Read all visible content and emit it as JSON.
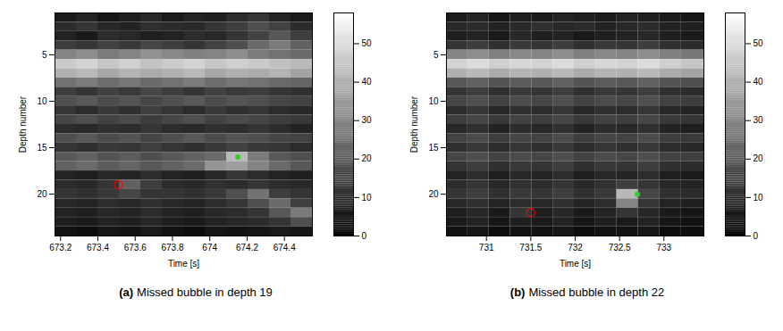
{
  "chart_data": [
    {
      "type": "heatmap",
      "title": "(a) Missed bubble in depth 19",
      "x_label": "Time [s]",
      "y_label": "Depth number",
      "xlim": [
        673.17,
        674.55
      ],
      "xticks": [
        673.2,
        673.4,
        673.6,
        673.8,
        674,
        674.2,
        674.4
      ],
      "ylim": [
        24.5,
        0.5
      ],
      "yticks": [
        5,
        10,
        15,
        20
      ],
      "time_bins": [
        673.17,
        673.285,
        673.4,
        673.515,
        673.63,
        673.745,
        673.86,
        673.975,
        674.09,
        674.205,
        674.32,
        674.435,
        674.55
      ],
      "depths": [
        1,
        2,
        3,
        4,
        5,
        6,
        7,
        8,
        9,
        10,
        11,
        12,
        13,
        14,
        15,
        16,
        17,
        18,
        19,
        20,
        21,
        22,
        23,
        24
      ],
      "cells": [
        [
          6,
          8,
          5,
          7,
          9,
          6,
          8,
          7,
          10,
          12,
          8,
          6
        ],
        [
          10,
          12,
          9,
          8,
          11,
          10,
          9,
          12,
          14,
          18,
          15,
          10
        ],
        [
          8,
          6,
          10,
          9,
          7,
          8,
          10,
          9,
          12,
          15,
          20,
          14
        ],
        [
          14,
          12,
          15,
          13,
          16,
          14,
          12,
          15,
          18,
          24,
          28,
          22
        ],
        [
          30,
          32,
          28,
          30,
          33,
          31,
          29,
          30,
          32,
          28,
          26,
          24
        ],
        [
          46,
          48,
          45,
          47,
          44,
          46,
          48,
          45,
          47,
          46,
          44,
          42
        ],
        [
          40,
          42,
          38,
          41,
          39,
          40,
          42,
          38,
          40,
          39,
          41,
          37
        ],
        [
          26,
          28,
          25,
          27,
          24,
          26,
          28,
          25,
          27,
          26,
          24,
          23
        ],
        [
          14,
          12,
          15,
          13,
          16,
          14,
          12,
          15,
          13,
          14,
          12,
          11
        ],
        [
          18,
          20,
          17,
          19,
          16,
          18,
          20,
          17,
          19,
          18,
          16,
          15
        ],
        [
          12,
          10,
          13,
          11,
          14,
          12,
          10,
          13,
          11,
          12,
          10,
          9
        ],
        [
          16,
          18,
          15,
          17,
          14,
          16,
          18,
          15,
          17,
          16,
          14,
          13
        ],
        [
          10,
          9,
          11,
          10,
          12,
          10,
          9,
          11,
          10,
          12,
          10,
          8
        ],
        [
          18,
          20,
          17,
          19,
          16,
          18,
          20,
          17,
          19,
          18,
          16,
          15
        ],
        [
          12,
          11,
          13,
          12,
          14,
          12,
          11,
          13,
          15,
          13,
          12,
          10
        ],
        [
          20,
          22,
          19,
          21,
          18,
          20,
          22,
          24,
          42,
          28,
          20,
          18
        ],
        [
          22,
          24,
          21,
          23,
          20,
          22,
          24,
          34,
          36,
          30,
          24,
          20
        ],
        [
          8,
          7,
          9,
          8,
          10,
          8,
          7,
          9,
          12,
          10,
          8,
          7
        ],
        [
          10,
          9,
          12,
          22,
          14,
          10,
          9,
          11,
          10,
          12,
          10,
          9
        ],
        [
          12,
          11,
          13,
          16,
          12,
          12,
          11,
          13,
          18,
          26,
          14,
          12
        ],
        [
          9,
          8,
          10,
          9,
          11,
          9,
          8,
          10,
          12,
          18,
          24,
          14
        ],
        [
          8,
          7,
          9,
          8,
          10,
          8,
          7,
          9,
          10,
          12,
          20,
          28
        ],
        [
          7,
          6,
          8,
          7,
          9,
          7,
          6,
          8,
          9,
          10,
          12,
          18
        ],
        [
          4,
          3,
          5,
          4,
          6,
          4,
          3,
          5,
          4,
          5,
          6,
          5
        ]
      ],
      "colorbar": {
        "range": [
          0,
          58
        ],
        "ticks": [
          0,
          10,
          20,
          30,
          40,
          50
        ]
      },
      "points": [
        {
          "x": 673.51,
          "y": 19,
          "color": "red",
          "marker": "circle"
        },
        {
          "x": 674.15,
          "y": 16,
          "color": "#33cc33",
          "marker": "point"
        }
      ]
    },
    {
      "type": "heatmap",
      "title": "(b) Missed bubble in depth 22",
      "x_label": "Time [s]",
      "y_label": "Depth number",
      "xlim": [
        730.55,
        733.45
      ],
      "xticks": [
        731,
        731.5,
        732,
        732.5,
        733
      ],
      "ylim": [
        24.5,
        0.5
      ],
      "yticks": [
        5,
        10,
        15,
        20
      ],
      "time_bins": [
        730.55,
        730.79,
        731.03,
        731.27,
        731.51,
        731.75,
        731.99,
        732.23,
        732.47,
        732.71,
        732.95,
        733.19,
        733.45
      ],
      "depths": [
        1,
        2,
        3,
        4,
        5,
        6,
        7,
        8,
        9,
        10,
        11,
        12,
        13,
        14,
        15,
        16,
        17,
        18,
        19,
        20,
        21,
        22,
        23,
        24
      ],
      "cells": [
        [
          6,
          8,
          5,
          7,
          6,
          8,
          7,
          6,
          8,
          7,
          6,
          5
        ],
        [
          9,
          10,
          8,
          9,
          11,
          9,
          10,
          8,
          9,
          10,
          8,
          7
        ],
        [
          7,
          8,
          6,
          9,
          7,
          8,
          6,
          7,
          8,
          9,
          7,
          6
        ],
        [
          12,
          14,
          11,
          13,
          12,
          14,
          11,
          13,
          12,
          14,
          11,
          10
        ],
        [
          30,
          32,
          29,
          31,
          30,
          32,
          29,
          31,
          30,
          32,
          29,
          27
        ],
        [
          48,
          50,
          47,
          49,
          48,
          50,
          47,
          49,
          48,
          50,
          47,
          45
        ],
        [
          40,
          42,
          39,
          41,
          40,
          42,
          39,
          41,
          40,
          42,
          39,
          37
        ],
        [
          20,
          22,
          19,
          21,
          20,
          22,
          19,
          21,
          20,
          22,
          19,
          18
        ],
        [
          12,
          14,
          11,
          13,
          12,
          14,
          11,
          13,
          12,
          14,
          11,
          10
        ],
        [
          16,
          18,
          15,
          17,
          16,
          18,
          15,
          17,
          16,
          18,
          15,
          14
        ],
        [
          10,
          12,
          9,
          11,
          10,
          12,
          9,
          11,
          10,
          12,
          9,
          8
        ],
        [
          14,
          16,
          13,
          15,
          14,
          16,
          13,
          15,
          14,
          16,
          13,
          12
        ],
        [
          9,
          11,
          8,
          10,
          9,
          11,
          8,
          10,
          9,
          11,
          8,
          7
        ],
        [
          15,
          17,
          14,
          16,
          15,
          17,
          14,
          16,
          15,
          17,
          14,
          13
        ],
        [
          11,
          13,
          10,
          12,
          11,
          13,
          10,
          12,
          11,
          13,
          10,
          9
        ],
        [
          16,
          18,
          15,
          17,
          16,
          18,
          15,
          17,
          16,
          18,
          15,
          14
        ],
        [
          12,
          14,
          11,
          13,
          12,
          14,
          11,
          13,
          12,
          14,
          11,
          10
        ],
        [
          8,
          10,
          7,
          9,
          8,
          10,
          7,
          9,
          8,
          10,
          7,
          6
        ],
        [
          10,
          12,
          9,
          11,
          10,
          12,
          9,
          11,
          14,
          12,
          9,
          8
        ],
        [
          12,
          14,
          11,
          13,
          12,
          14,
          11,
          13,
          42,
          16,
          11,
          10
        ],
        [
          9,
          11,
          8,
          10,
          9,
          11,
          8,
          10,
          30,
          12,
          8,
          7
        ],
        [
          7,
          9,
          6,
          12,
          7,
          9,
          6,
          8,
          12,
          9,
          6,
          5
        ],
        [
          6,
          8,
          5,
          7,
          6,
          8,
          5,
          7,
          6,
          8,
          5,
          4
        ],
        [
          4,
          5,
          3,
          4,
          4,
          5,
          3,
          4,
          4,
          5,
          3,
          3
        ]
      ],
      "colorbar": {
        "range": [
          0,
          58
        ],
        "ticks": [
          0,
          10,
          20,
          30,
          40,
          50
        ]
      },
      "points": [
        {
          "x": 731.5,
          "y": 22,
          "color": "red",
          "marker": "circle"
        },
        {
          "x": 732.7,
          "y": 20,
          "color": "#33cc33",
          "marker": "point"
        }
      ]
    }
  ]
}
